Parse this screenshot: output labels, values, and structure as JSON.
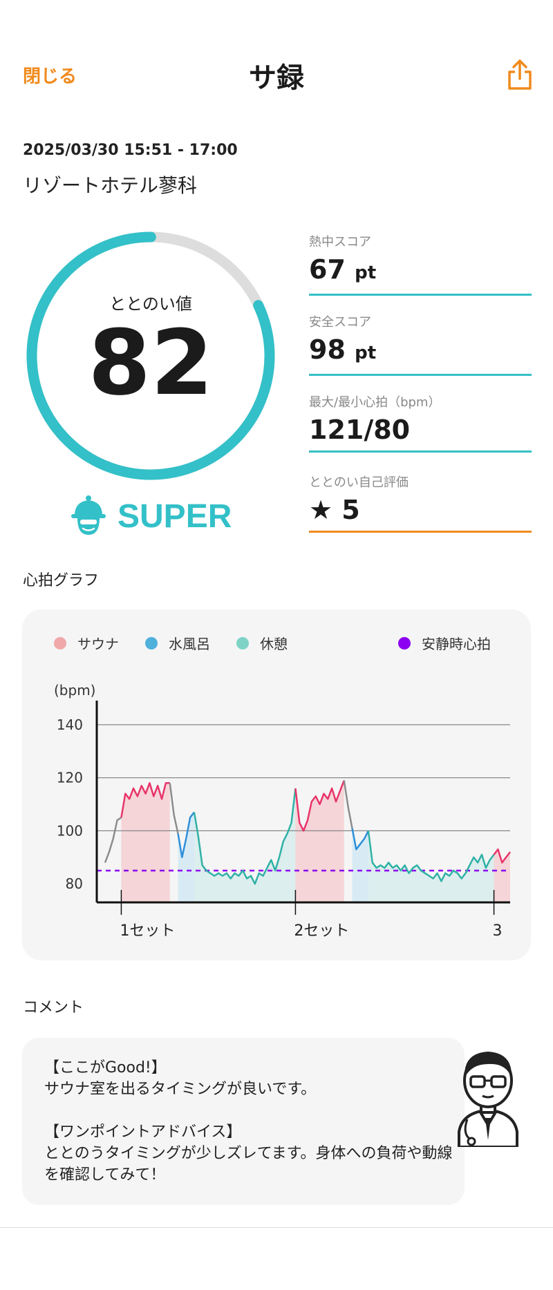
{
  "header": {
    "close_label": "閉じる",
    "title": "サ録",
    "share_icon": "share-icon"
  },
  "session": {
    "datetime": "2025/03/30 15:51 - 17:00",
    "place": "リゾートホテル蓼科"
  },
  "gauge": {
    "label": "ととのい値",
    "value": "82",
    "fraction": 0.82,
    "color": "#33c0c8"
  },
  "rank": {
    "label": "SUPER",
    "icon": "sauna-hat-icon"
  },
  "stats": [
    {
      "label": "熱中スコア",
      "value": "67",
      "unit": "pt"
    },
    {
      "label": "安全スコア",
      "value": "98",
      "unit": "pt"
    },
    {
      "label": "最大/最小心拍（bpm）",
      "value": "121/80",
      "unit": ""
    },
    {
      "label": "ととのい自己評価",
      "value": "★ 5",
      "unit": ""
    }
  ],
  "graph_section_title": "心拍グラフ",
  "legend": [
    {
      "label": "サウナ",
      "color": "#f0a8a8"
    },
    {
      "label": "水風呂",
      "color": "#4fb0dc"
    },
    {
      "label": "休憩",
      "color": "#7fd3c6"
    },
    {
      "label": "安静時心拍",
      "color": "#8b00f0"
    }
  ],
  "chart_data": {
    "type": "line",
    "ylabel": "(bpm)",
    "yticks": [
      80,
      100,
      120,
      140
    ],
    "ylim": [
      73,
      147
    ],
    "x_tick_labels": [
      "1セット",
      "2セット",
      "3"
    ],
    "resting_hr": 85,
    "x": [
      0,
      1,
      2,
      3,
      4,
      5,
      6,
      7,
      8,
      9,
      10,
      11,
      12,
      13,
      14,
      15,
      16,
      17,
      18,
      19,
      20,
      21,
      22,
      23,
      24,
      25,
      26,
      27,
      28,
      29,
      30,
      31,
      32,
      33,
      34,
      35,
      36,
      37,
      38,
      39,
      40,
      41,
      42,
      43,
      44,
      45,
      46,
      47,
      48,
      49,
      50,
      51,
      52,
      53,
      54,
      55,
      56,
      57,
      58,
      59,
      60,
      61,
      62,
      63,
      64,
      65,
      66,
      67,
      68,
      69,
      70,
      71,
      72,
      73,
      74,
      75,
      76,
      77,
      78,
      79,
      80,
      81,
      82,
      83,
      84,
      85,
      86,
      87,
      88,
      89,
      90,
      91,
      92,
      93,
      94,
      95,
      96,
      97,
      98,
      99,
      100
    ],
    "series": [
      {
        "segment": "other",
        "color": "#8c8c8c",
        "start": 0,
        "end": 4
      },
      {
        "segment": "sauna",
        "color": "#e8346a",
        "start": 4,
        "end": 16
      },
      {
        "segment": "other",
        "color": "#8c8c8c",
        "start": 16,
        "end": 18
      },
      {
        "segment": "cold",
        "color": "#2e8fd8",
        "start": 18,
        "end": 22
      },
      {
        "segment": "rest",
        "color": "#2fb1a6",
        "start": 22,
        "end": 47
      },
      {
        "segment": "sauna",
        "color": "#e8346a",
        "start": 47,
        "end": 59
      },
      {
        "segment": "other",
        "color": "#8c8c8c",
        "start": 59,
        "end": 61
      },
      {
        "segment": "cold",
        "color": "#2e8fd8",
        "start": 61,
        "end": 65
      },
      {
        "segment": "rest",
        "color": "#2fb1a6",
        "start": 65,
        "end": 96
      },
      {
        "segment": "sauna",
        "color": "#e8346a",
        "start": 96,
        "end": 100
      }
    ],
    "y": [
      88,
      92,
      97,
      104,
      105,
      114,
      112,
      116,
      113,
      117,
      114,
      118,
      113,
      117,
      112,
      118,
      118,
      106,
      99,
      90,
      97,
      105,
      107,
      98,
      87,
      85,
      84,
      83,
      84,
      83,
      84,
      82,
      84,
      83,
      85,
      82,
      83,
      80,
      84,
      83,
      86,
      89,
      85,
      90,
      96,
      99,
      103,
      116,
      103,
      100,
      104,
      111,
      113,
      110,
      114,
      112,
      116,
      111,
      115,
      119,
      109,
      101,
      93,
      95,
      97,
      100,
      88,
      86,
      87,
      86,
      88,
      86,
      87,
      85,
      87,
      84,
      86,
      87,
      85,
      84,
      83,
      82,
      84,
      81,
      84,
      83,
      85,
      84,
      82,
      84,
      87,
      90,
      88,
      91,
      86,
      89,
      91,
      93,
      88,
      90,
      92
    ]
  },
  "comment_section_title": "コメント",
  "comment": {
    "good_heading": "【ここがGood!】",
    "good_text": "サウナ室を出るタイミングが良いです。",
    "advice_heading": "【ワンポイントアドバイス】",
    "advice_text": "ととのうタイミングが少しズレてます。身体への負荷や動線を確認してみて！"
  }
}
